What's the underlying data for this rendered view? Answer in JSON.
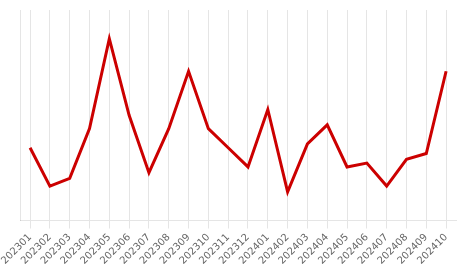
{
  "chart_data": {
    "type": "line",
    "categories": [
      "202301",
      "202302",
      "202303",
      "202304",
      "202305",
      "202306",
      "202307",
      "202308",
      "202309",
      "202310",
      "202311",
      "202312",
      "202401",
      "202402",
      "202403",
      "202404",
      "202405",
      "202406",
      "202407",
      "202408",
      "202409",
      "202410"
    ],
    "values": [
      78,
      58,
      62,
      88,
      135,
      95,
      65,
      88,
      118,
      88,
      78,
      68,
      98,
      55,
      80,
      90,
      68,
      70,
      58,
      72,
      75,
      118
    ],
    "color": "#cc0000",
    "ylim": [
      40,
      150
    ],
    "yticks": [],
    "grid": true,
    "tick_labels": "x"
  }
}
